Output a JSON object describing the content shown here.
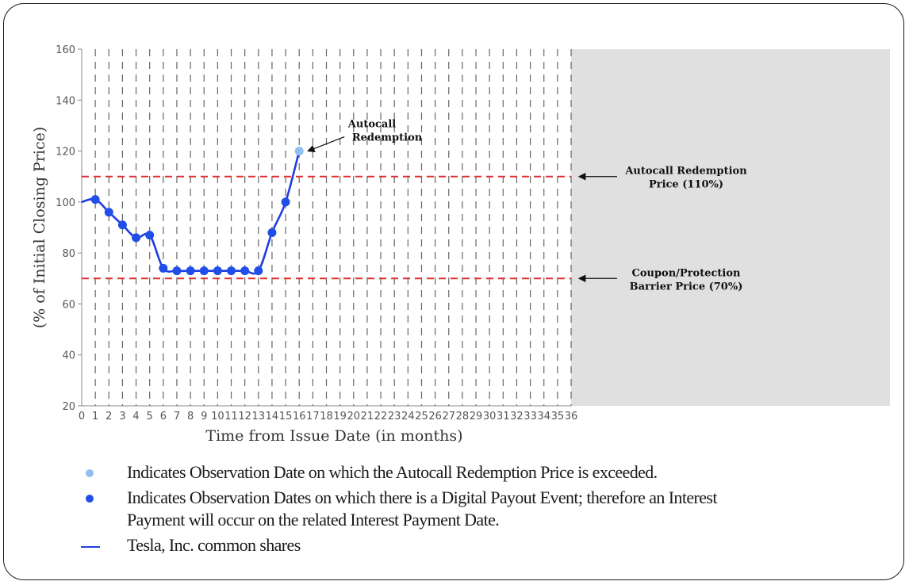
{
  "chart_data": {
    "type": "line",
    "title": "",
    "xlabel": "Time from Issue Date (in months)",
    "ylabel": "(% of Initial Closing Price)",
    "xlim": [
      0,
      36
    ],
    "ylim": [
      20,
      160
    ],
    "y_ticks": [
      20,
      40,
      60,
      80,
      100,
      120,
      140,
      160
    ],
    "x_ticks": [
      0,
      1,
      2,
      3,
      4,
      5,
      6,
      7,
      8,
      9,
      10,
      11,
      12,
      13,
      14,
      15,
      16,
      17,
      18,
      19,
      20,
      21,
      22,
      23,
      24,
      25,
      26,
      27,
      28,
      29,
      30,
      31,
      32,
      33,
      34,
      35,
      36
    ],
    "grid": "vertical dashed lines at each month",
    "shaded_region": {
      "from_month": 36,
      "color": "#e0e0e0"
    },
    "series": [
      {
        "name": "Tesla, Inc. common shares",
        "color": "#1f3fe0",
        "x": [
          0,
          1,
          2,
          3,
          4,
          5,
          6,
          7,
          8,
          9,
          10,
          11,
          12,
          13,
          14,
          15,
          16
        ],
        "y": [
          100,
          101,
          96,
          91,
          86,
          87,
          74,
          73,
          73,
          73,
          73,
          73,
          73,
          73,
          88,
          100,
          120
        ]
      }
    ],
    "observation_markers": {
      "digital_payout_months": [
        1,
        2,
        3,
        4,
        5,
        6,
        7,
        8,
        9,
        10,
        11,
        12,
        13,
        14,
        15
      ],
      "digital_payout_color": "#1f4ee8",
      "autocall_month": 16,
      "autocall_color": "#8fc0f0"
    },
    "reference_lines": [
      {
        "y": 110,
        "color": "#e03030",
        "label_line1": "Autocall Redemption",
        "label_line2": "Price (110%)"
      },
      {
        "y": 70,
        "color": "#e03030",
        "label_line1": "Coupon/Protection",
        "label_line2": "Barrier Price (70%)"
      }
    ],
    "annotations": [
      {
        "text_line1": "Autocall",
        "text_line2": "Redemption",
        "points_to_month": 16,
        "points_to_value": 120
      }
    ]
  },
  "legend": {
    "items": [
      {
        "marker": "light-blue-dot",
        "color": "#8fc0f0",
        "text": "Indicates Observation Date on which the Autocall Redemption Price is exceeded."
      },
      {
        "marker": "blue-dot",
        "color": "#1f4ee8",
        "text_line1": "Indicates Observation Dates on which there is a Digital Payout Event; therefore an Interest",
        "text_line2": "Payment will occur on the related Interest Payment Date."
      },
      {
        "marker": "blue-line",
        "color": "#1f3fe0",
        "text": "Tesla, Inc. common shares"
      }
    ]
  }
}
